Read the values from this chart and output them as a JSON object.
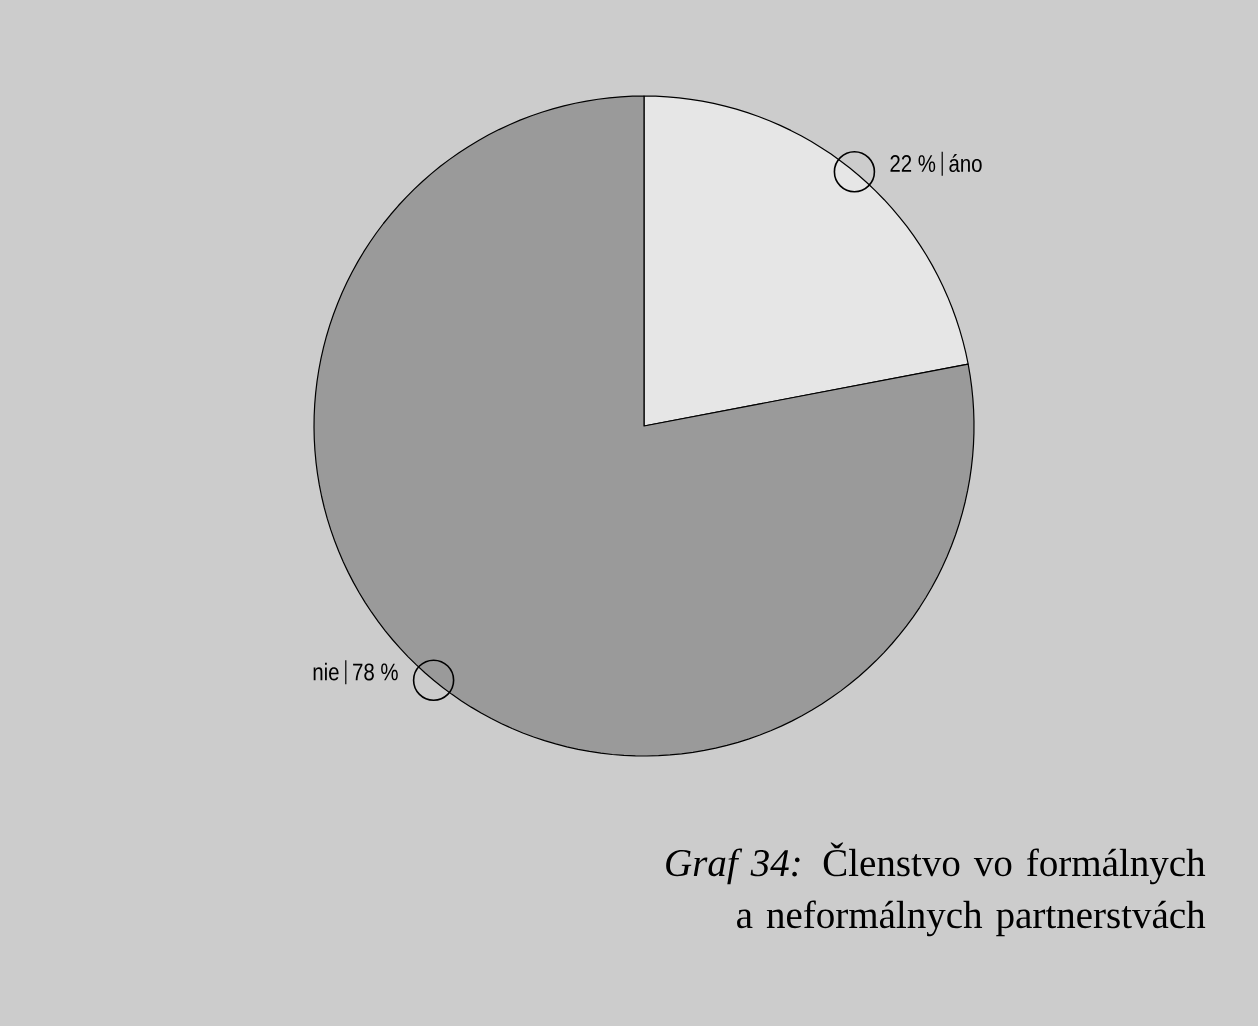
{
  "chart_data": {
    "type": "pie",
    "title": "*Graf 34:* Členstvo vo formálnych a neformálnych partnerstvách",
    "categories": [
      "áno",
      "nie"
    ],
    "values": [
      22,
      78
    ],
    "colors": [
      "#e6e6e6",
      "#9a9a9a"
    ],
    "value_labels": [
      "22 %",
      "78 %"
    ]
  }
}
